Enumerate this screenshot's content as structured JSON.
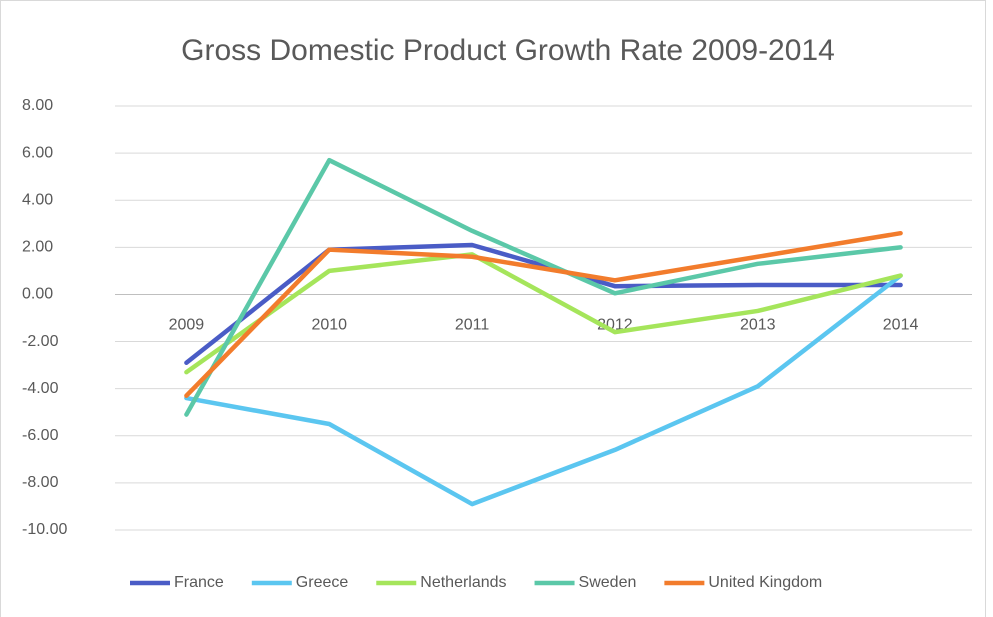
{
  "chart_data": {
    "type": "line",
    "title": "Gross Domestic Product Growth Rate 2009-2014",
    "categories": [
      "2009",
      "2010",
      "2011",
      "2012",
      "2013",
      "2014"
    ],
    "series": [
      {
        "name": "France",
        "color": "#4a5cc6",
        "values": [
          -2.9,
          1.9,
          2.1,
          0.35,
          0.4,
          0.4
        ]
      },
      {
        "name": "Greece",
        "color": "#5bc6f0",
        "values": [
          -4.4,
          -5.5,
          -8.9,
          -6.6,
          -3.9,
          0.8
        ]
      },
      {
        "name": "Netherlands",
        "color": "#a5e55b",
        "values": [
          -3.3,
          1.0,
          1.7,
          -1.6,
          -0.7,
          0.8
        ]
      },
      {
        "name": "Sweden",
        "color": "#5bc8a8",
        "values": [
          -5.1,
          5.7,
          2.7,
          0.05,
          1.3,
          2.0
        ]
      },
      {
        "name": "United Kingdom",
        "color": "#f27c2c",
        "values": [
          -4.3,
          1.9,
          1.6,
          0.6,
          1.6,
          2.6
        ]
      }
    ],
    "ylim": [
      -10,
      8
    ],
    "yticks": [
      {
        "value": -10,
        "label": "-10.00"
      },
      {
        "value": -8,
        "label": "-8.00"
      },
      {
        "value": -6,
        "label": "-6.00"
      },
      {
        "value": -4,
        "label": "-4.00"
      },
      {
        "value": -2,
        "label": "-2.00"
      },
      {
        "value": 0,
        "label": "0.00"
      },
      {
        "value": 2,
        "label": "2.00"
      },
      {
        "value": 4,
        "label": "4.00"
      },
      {
        "value": 6,
        "label": "6.00"
      },
      {
        "value": 8,
        "label": "8.00"
      }
    ],
    "grid": true,
    "legend": "bottom"
  }
}
